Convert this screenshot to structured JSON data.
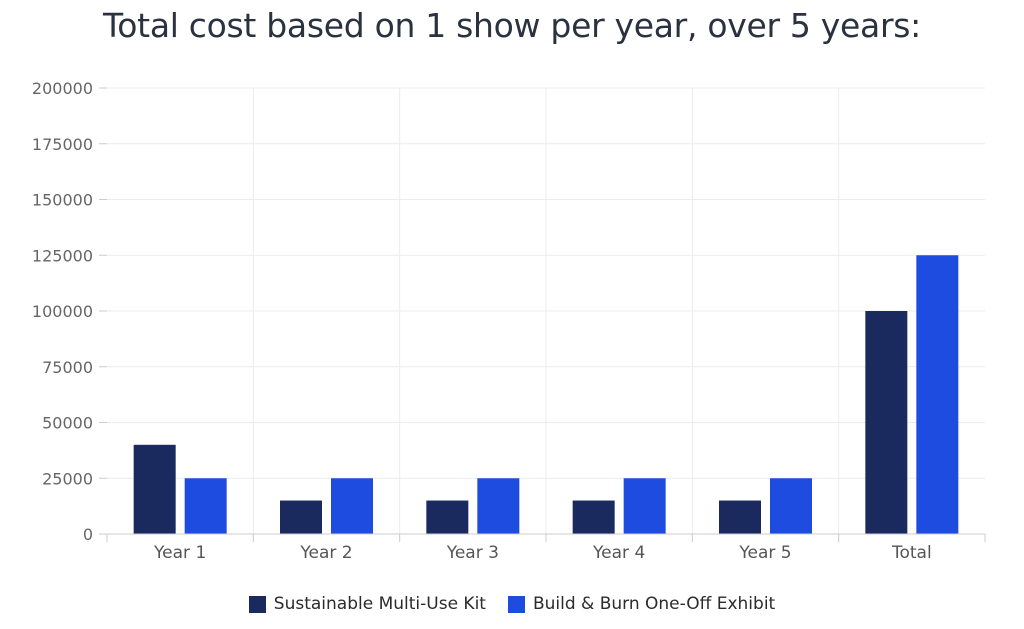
{
  "chart_data": {
    "type": "bar",
    "title": "Total cost based on 1 show per year, over 5 years:",
    "categories": [
      "Year 1",
      "Year 2",
      "Year 3",
      "Year 4",
      "Year 5",
      "Total"
    ],
    "series": [
      {
        "name": "Sustainable Multi-Use Kit",
        "color": "#1b2a5e",
        "values": [
          40000,
          15000,
          15000,
          15000,
          15000,
          100000
        ]
      },
      {
        "name": "Build & Burn One-Off Exhibit",
        "color": "#1f4ce0",
        "values": [
          25000,
          25000,
          25000,
          25000,
          25000,
          125000
        ]
      }
    ],
    "xlabel": "",
    "ylabel": "",
    "ylim": [
      0,
      200000
    ],
    "yticks": [
      "0",
      "25000",
      "50000",
      "75000",
      "100000",
      "125000",
      "150000",
      "175000",
      "200000"
    ],
    "grid": true,
    "legend_position": "bottom"
  }
}
